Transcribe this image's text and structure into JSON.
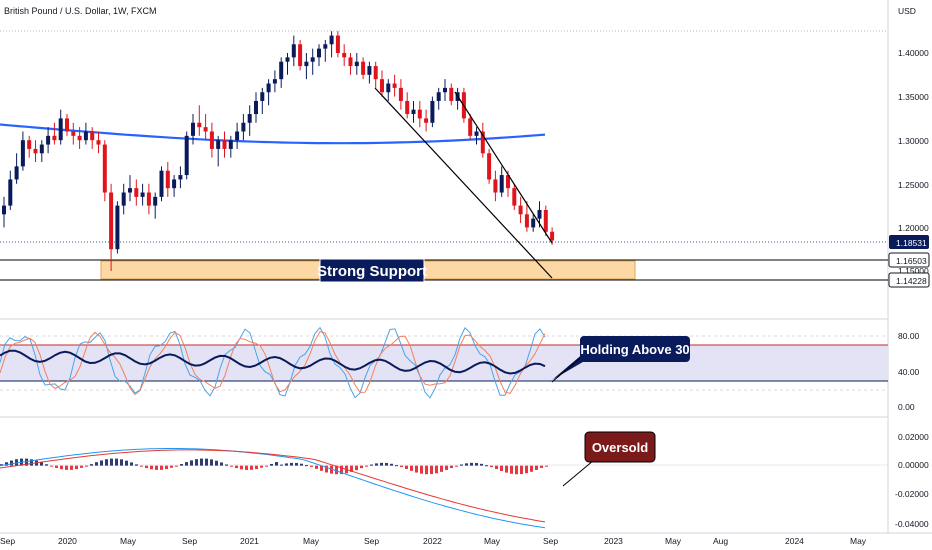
{
  "header": {
    "symbol_title": "British Pound / U.S. Dollar, 1W, FXCM"
  },
  "colors": {
    "up_candle": "#0a1b5c",
    "down_candle": "#e0141d",
    "ma_line": "#2962ff",
    "support_fill": "#fcd8a4",
    "rsi_line": "#0a1b5c",
    "rsi_band": "#e3e3f5",
    "stoch_k": "#4aa3e8",
    "stoch_d": "#f08060",
    "macd_line": "#2196f3",
    "signal_line": "#e53935",
    "rsi_level_line": "#c62828",
    "callout_navy": "#0a1b5c",
    "callout_maroon": "#7b1a1a"
  },
  "price_axis": {
    "unit_label": "USD",
    "ticks": [
      "1.40000",
      "1.35000",
      "1.30000",
      "1.25000",
      "1.20000",
      "1.15000"
    ]
  },
  "price_labels": [
    {
      "text": "1.18531",
      "style": "dark"
    },
    {
      "text": "1.16503",
      "style": "light"
    },
    {
      "text": "1.14228",
      "style": "light"
    }
  ],
  "annotations": {
    "strong_support": "Strong Support",
    "holding_above_30": "Holding Above 30",
    "oversold": "Oversold"
  },
  "rsi_axis": {
    "ticks": [
      "80.00",
      "40.00",
      "0.00"
    ]
  },
  "macd_axis": {
    "ticks": [
      "0.02000",
      "0.00000",
      "-0.02000",
      "-0.04000"
    ]
  },
  "time_axis": {
    "ticks": [
      "Sep",
      "2020",
      "May",
      "Sep",
      "2021",
      "May",
      "Sep",
      "2022",
      "May",
      "Sep",
      "2023",
      "May",
      "Aug",
      "2024",
      "May"
    ]
  },
  "chart_data": {
    "type": "candlestick",
    "title": "British Pound / U.S. Dollar, 1W, FXCM",
    "yaxis_unit": "USD",
    "ylim": [
      1.135,
      1.43
    ],
    "support_zone": {
      "low": 1.14228,
      "high": 1.16503
    },
    "last_price": 1.18531,
    "ohlc_weekly": [
      [
        1.215,
        1.235,
        1.2,
        1.225
      ],
      [
        1.225,
        1.265,
        1.22,
        1.255
      ],
      [
        1.255,
        1.285,
        1.25,
        1.27
      ],
      [
        1.27,
        1.31,
        1.265,
        1.3
      ],
      [
        1.3,
        1.305,
        1.28,
        1.29
      ],
      [
        1.29,
        1.3,
        1.275,
        1.285
      ],
      [
        1.285,
        1.3,
        1.275,
        1.295
      ],
      [
        1.295,
        1.315,
        1.285,
        1.305
      ],
      [
        1.305,
        1.32,
        1.295,
        1.3
      ],
      [
        1.3,
        1.335,
        1.295,
        1.325
      ],
      [
        1.325,
        1.33,
        1.305,
        1.31
      ],
      [
        1.31,
        1.32,
        1.295,
        1.305
      ],
      [
        1.305,
        1.315,
        1.29,
        1.3
      ],
      [
        1.3,
        1.32,
        1.295,
        1.31
      ],
      [
        1.31,
        1.315,
        1.29,
        1.3
      ],
      [
        1.3,
        1.31,
        1.285,
        1.295
      ],
      [
        1.295,
        1.3,
        1.23,
        1.24
      ],
      [
        1.24,
        1.25,
        1.15,
        1.175
      ],
      [
        1.175,
        1.23,
        1.17,
        1.225
      ],
      [
        1.225,
        1.25,
        1.215,
        1.24
      ],
      [
        1.24,
        1.26,
        1.23,
        1.245
      ],
      [
        1.245,
        1.255,
        1.225,
        1.235
      ],
      [
        1.235,
        1.25,
        1.225,
        1.24
      ],
      [
        1.24,
        1.25,
        1.215,
        1.225
      ],
      [
        1.225,
        1.24,
        1.21,
        1.235
      ],
      [
        1.235,
        1.27,
        1.23,
        1.265
      ],
      [
        1.265,
        1.275,
        1.235,
        1.245
      ],
      [
        1.245,
        1.26,
        1.235,
        1.255
      ],
      [
        1.255,
        1.27,
        1.245,
        1.26
      ],
      [
        1.26,
        1.31,
        1.255,
        1.305
      ],
      [
        1.305,
        1.33,
        1.295,
        1.32
      ],
      [
        1.32,
        1.34,
        1.305,
        1.315
      ],
      [
        1.315,
        1.33,
        1.3,
        1.31
      ],
      [
        1.31,
        1.32,
        1.28,
        1.29
      ],
      [
        1.29,
        1.305,
        1.27,
        1.3
      ],
      [
        1.3,
        1.31,
        1.28,
        1.29
      ],
      [
        1.29,
        1.305,
        1.28,
        1.3
      ],
      [
        1.3,
        1.32,
        1.29,
        1.31
      ],
      [
        1.31,
        1.33,
        1.3,
        1.32
      ],
      [
        1.32,
        1.34,
        1.305,
        1.33
      ],
      [
        1.33,
        1.355,
        1.32,
        1.345
      ],
      [
        1.345,
        1.36,
        1.33,
        1.355
      ],
      [
        1.355,
        1.37,
        1.34,
        1.365
      ],
      [
        1.365,
        1.38,
        1.355,
        1.37
      ],
      [
        1.37,
        1.395,
        1.36,
        1.39
      ],
      [
        1.39,
        1.4,
        1.375,
        1.395
      ],
      [
        1.395,
        1.42,
        1.385,
        1.41
      ],
      [
        1.41,
        1.415,
        1.38,
        1.385
      ],
      [
        1.385,
        1.4,
        1.37,
        1.39
      ],
      [
        1.39,
        1.405,
        1.375,
        1.395
      ],
      [
        1.395,
        1.41,
        1.385,
        1.405
      ],
      [
        1.405,
        1.415,
        1.39,
        1.41
      ],
      [
        1.41,
        1.425,
        1.395,
        1.42
      ],
      [
        1.42,
        1.425,
        1.395,
        1.4
      ],
      [
        1.4,
        1.41,
        1.385,
        1.395
      ],
      [
        1.395,
        1.4,
        1.375,
        1.385
      ],
      [
        1.385,
        1.4,
        1.375,
        1.39
      ],
      [
        1.39,
        1.395,
        1.37,
        1.375
      ],
      [
        1.375,
        1.39,
        1.365,
        1.385
      ],
      [
        1.385,
        1.39,
        1.36,
        1.37
      ],
      [
        1.37,
        1.38,
        1.35,
        1.355
      ],
      [
        1.355,
        1.37,
        1.345,
        1.365
      ],
      [
        1.365,
        1.375,
        1.35,
        1.36
      ],
      [
        1.36,
        1.37,
        1.335,
        1.345
      ],
      [
        1.345,
        1.355,
        1.325,
        1.33
      ],
      [
        1.33,
        1.345,
        1.32,
        1.335
      ],
      [
        1.335,
        1.345,
        1.315,
        1.325
      ],
      [
        1.325,
        1.335,
        1.31,
        1.32
      ],
      [
        1.32,
        1.35,
        1.315,
        1.345
      ],
      [
        1.345,
        1.36,
        1.335,
        1.355
      ],
      [
        1.355,
        1.37,
        1.345,
        1.36
      ],
      [
        1.36,
        1.365,
        1.34,
        1.345
      ],
      [
        1.345,
        1.36,
        1.335,
        1.355
      ],
      [
        1.355,
        1.36,
        1.32,
        1.325
      ],
      [
        1.325,
        1.33,
        1.3,
        1.305
      ],
      [
        1.305,
        1.315,
        1.295,
        1.31
      ],
      [
        1.31,
        1.32,
        1.28,
        1.285
      ],
      [
        1.285,
        1.29,
        1.25,
        1.255
      ],
      [
        1.255,
        1.265,
        1.23,
        1.24
      ],
      [
        1.24,
        1.27,
        1.235,
        1.26
      ],
      [
        1.26,
        1.265,
        1.235,
        1.245
      ],
      [
        1.245,
        1.25,
        1.22,
        1.225
      ],
      [
        1.225,
        1.235,
        1.205,
        1.215
      ],
      [
        1.215,
        1.23,
        1.195,
        1.2
      ],
      [
        1.2,
        1.215,
        1.195,
        1.21
      ],
      [
        1.21,
        1.23,
        1.2,
        1.22
      ],
      [
        1.22,
        1.225,
        1.19,
        1.195
      ],
      [
        1.195,
        1.2,
        1.18,
        1.185
      ]
    ],
    "moving_average": {
      "start": 1.316,
      "end": 1.305
    },
    "trendlines": [
      {
        "from": 1.4,
        "to": 1.145,
        "label": ""
      },
      {
        "from": 1.36,
        "to": 1.142,
        "label": ""
      }
    ],
    "rsi_panel": {
      "ylim": [
        0,
        100
      ],
      "ticks": [
        80,
        40,
        0
      ],
      "upper_line": 70,
      "lower_line": 30,
      "band": [
        30,
        70
      ],
      "last_rsi": 36
    },
    "macd_panel": {
      "ylim": [
        -0.04,
        0.025
      ],
      "ticks": [
        0.02,
        0.0,
        -0.02,
        -0.04
      ]
    }
  }
}
